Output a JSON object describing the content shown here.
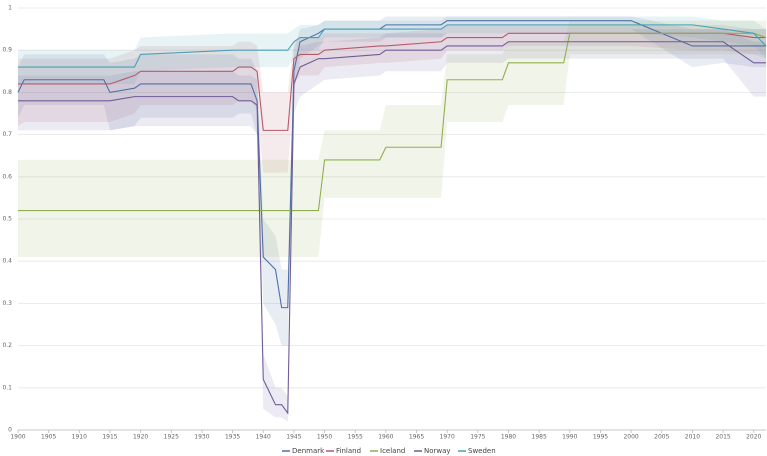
{
  "chart_data": {
    "type": "line",
    "x": [
      1900,
      1901,
      1914,
      1915,
      1919,
      1920,
      1935,
      1936,
      1938,
      1939,
      1940,
      1942,
      1943,
      1944,
      1945,
      1946,
      1949,
      1950,
      1959,
      1960,
      1969,
      1970,
      1979,
      1980,
      1989,
      1990,
      2000,
      2010,
      2015,
      2020,
      2022
    ],
    "xlim": [
      1900,
      2022
    ],
    "xticks": [
      1900,
      1905,
      1910,
      1915,
      1920,
      1925,
      1930,
      1935,
      1940,
      1945,
      1950,
      1955,
      1960,
      1965,
      1970,
      1975,
      1980,
      1985,
      1990,
      1995,
      2000,
      2005,
      2010,
      2015,
      2020
    ],
    "ylim": [
      0,
      1
    ],
    "yticks": [
      0,
      0.1,
      0.2,
      0.3,
      0.4,
      0.5,
      0.6,
      0.7,
      0.8,
      0.9,
      1
    ],
    "grid": true,
    "legend": "bottom",
    "series": [
      {
        "name": "Denmark",
        "color": "#4f6fa6",
        "values": [
          0.8,
          0.83,
          0.83,
          0.8,
          0.81,
          0.82,
          0.82,
          0.82,
          0.82,
          0.78,
          0.41,
          0.38,
          0.29,
          0.29,
          0.85,
          0.92,
          0.94,
          0.95,
          0.95,
          0.96,
          0.96,
          0.97,
          0.97,
          0.97,
          0.97,
          0.97,
          0.97,
          0.91,
          0.91,
          0.91,
          0.91
        ],
        "lower": [
          0.74,
          0.77,
          0.77,
          0.71,
          0.72,
          0.74,
          0.74,
          0.75,
          0.75,
          0.7,
          0.3,
          0.25,
          0.2,
          0.2,
          0.8,
          0.88,
          0.91,
          0.92,
          0.92,
          0.93,
          0.93,
          0.94,
          0.94,
          0.95,
          0.95,
          0.95,
          0.95,
          0.86,
          0.87,
          0.86,
          0.86
        ],
        "upper": [
          0.86,
          0.89,
          0.89,
          0.87,
          0.88,
          0.89,
          0.89,
          0.88,
          0.88,
          0.85,
          0.5,
          0.46,
          0.38,
          0.38,
          0.9,
          0.95,
          0.96,
          0.97,
          0.97,
          0.98,
          0.98,
          0.98,
          0.98,
          0.98,
          0.98,
          0.98,
          0.98,
          0.95,
          0.95,
          0.95,
          0.95
        ]
      },
      {
        "name": "Finland",
        "color": "#b45a6a",
        "values": [
          0.82,
          0.82,
          0.82,
          0.82,
          0.84,
          0.85,
          0.85,
          0.86,
          0.86,
          0.85,
          0.71,
          0.71,
          0.71,
          0.71,
          0.88,
          0.89,
          0.89,
          0.9,
          0.91,
          0.91,
          0.92,
          0.93,
          0.93,
          0.94,
          0.94,
          0.94,
          0.94,
          0.94,
          0.94,
          0.93,
          0.93
        ],
        "lower": [
          0.72,
          0.73,
          0.73,
          0.73,
          0.75,
          0.77,
          0.77,
          0.78,
          0.78,
          0.76,
          0.61,
          0.61,
          0.61,
          0.61,
          0.82,
          0.84,
          0.84,
          0.86,
          0.87,
          0.87,
          0.88,
          0.9,
          0.9,
          0.91,
          0.91,
          0.91,
          0.91,
          0.9,
          0.9,
          0.89,
          0.89
        ],
        "upper": [
          0.88,
          0.88,
          0.88,
          0.88,
          0.9,
          0.91,
          0.91,
          0.92,
          0.92,
          0.91,
          0.8,
          0.8,
          0.8,
          0.8,
          0.92,
          0.93,
          0.93,
          0.94,
          0.94,
          0.94,
          0.95,
          0.96,
          0.96,
          0.96,
          0.96,
          0.96,
          0.96,
          0.96,
          0.96,
          0.95,
          0.95
        ]
      },
      {
        "name": "Iceland",
        "color": "#8fae52",
        "values": [
          0.52,
          0.52,
          0.52,
          0.52,
          0.52,
          0.52,
          0.52,
          0.52,
          0.52,
          0.52,
          0.52,
          0.52,
          0.52,
          0.52,
          0.52,
          0.52,
          0.52,
          0.64,
          0.64,
          0.67,
          0.67,
          0.83,
          0.83,
          0.87,
          0.87,
          0.94,
          0.94,
          0.94,
          0.94,
          0.94,
          0.93
        ],
        "lower": [
          0.41,
          0.41,
          0.41,
          0.41,
          0.41,
          0.41,
          0.41,
          0.41,
          0.41,
          0.41,
          0.41,
          0.41,
          0.41,
          0.41,
          0.41,
          0.41,
          0.41,
          0.55,
          0.55,
          0.55,
          0.55,
          0.73,
          0.73,
          0.77,
          0.77,
          0.89,
          0.89,
          0.89,
          0.89,
          0.89,
          0.88
        ],
        "upper": [
          0.64,
          0.64,
          0.64,
          0.64,
          0.64,
          0.64,
          0.64,
          0.64,
          0.64,
          0.64,
          0.64,
          0.64,
          0.64,
          0.64,
          0.64,
          0.64,
          0.64,
          0.71,
          0.71,
          0.77,
          0.77,
          0.89,
          0.89,
          0.92,
          0.92,
          0.97,
          0.97,
          0.97,
          0.97,
          0.97,
          0.97
        ]
      },
      {
        "name": "Norway",
        "color": "#705c99",
        "values": [
          0.78,
          0.78,
          0.78,
          0.78,
          0.79,
          0.79,
          0.79,
          0.78,
          0.78,
          0.77,
          0.12,
          0.06,
          0.06,
          0.04,
          0.82,
          0.86,
          0.88,
          0.88,
          0.89,
          0.9,
          0.9,
          0.91,
          0.91,
          0.92,
          0.92,
          0.92,
          0.92,
          0.92,
          0.92,
          0.87,
          0.87
        ],
        "lower": [
          0.71,
          0.71,
          0.71,
          0.71,
          0.72,
          0.72,
          0.72,
          0.72,
          0.72,
          0.7,
          0.05,
          0.03,
          0.03,
          0.02,
          0.75,
          0.79,
          0.82,
          0.83,
          0.84,
          0.85,
          0.85,
          0.87,
          0.87,
          0.88,
          0.88,
          0.88,
          0.88,
          0.88,
          0.88,
          0.79,
          0.79
        ],
        "upper": [
          0.84,
          0.84,
          0.84,
          0.84,
          0.85,
          0.85,
          0.85,
          0.84,
          0.84,
          0.83,
          0.18,
          0.1,
          0.1,
          0.08,
          0.88,
          0.91,
          0.92,
          0.92,
          0.93,
          0.94,
          0.94,
          0.94,
          0.94,
          0.95,
          0.95,
          0.95,
          0.95,
          0.95,
          0.95,
          0.92,
          0.92
        ]
      },
      {
        "name": "Sweden",
        "color": "#4aa0b5",
        "values": [
          0.86,
          0.86,
          0.86,
          0.86,
          0.86,
          0.89,
          0.9,
          0.9,
          0.9,
          0.9,
          0.9,
          0.9,
          0.9,
          0.9,
          0.92,
          0.93,
          0.93,
          0.95,
          0.95,
          0.95,
          0.95,
          0.96,
          0.96,
          0.96,
          0.96,
          0.96,
          0.96,
          0.96,
          0.95,
          0.94,
          0.91
        ],
        "lower": [
          0.82,
          0.82,
          0.82,
          0.82,
          0.82,
          0.85,
          0.86,
          0.86,
          0.86,
          0.86,
          0.86,
          0.86,
          0.86,
          0.86,
          0.88,
          0.9,
          0.9,
          0.93,
          0.93,
          0.93,
          0.93,
          0.94,
          0.94,
          0.94,
          0.94,
          0.94,
          0.94,
          0.93,
          0.92,
          0.91,
          0.88
        ],
        "upper": [
          0.9,
          0.9,
          0.9,
          0.9,
          0.9,
          0.93,
          0.94,
          0.94,
          0.94,
          0.94,
          0.94,
          0.94,
          0.94,
          0.94,
          0.95,
          0.96,
          0.96,
          0.97,
          0.97,
          0.97,
          0.97,
          0.98,
          0.98,
          0.98,
          0.98,
          0.98,
          0.98,
          0.98,
          0.97,
          0.97,
          0.95
        ]
      }
    ]
  }
}
